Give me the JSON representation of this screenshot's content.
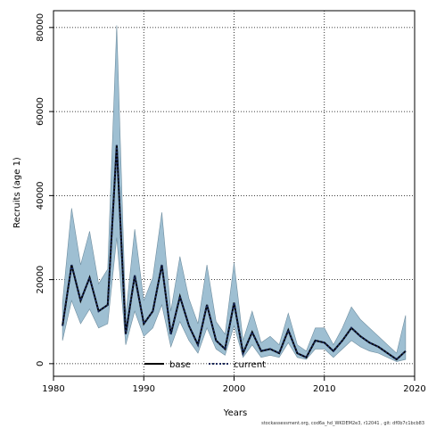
{
  "chart_data": {
    "type": "area",
    "title": "",
    "xlabel": "Years",
    "ylabel": "Recruits (age 1)",
    "xlim": [
      1980,
      2020
    ],
    "ylim": [
      -3000,
      84000
    ],
    "xticks": [
      1980,
      1990,
      2000,
      2010,
      2020
    ],
    "yticks": [
      0,
      20000,
      40000,
      60000,
      80000
    ],
    "x_tick_labels": [
      "1980",
      "1990",
      "2000",
      "2010",
      "2020"
    ],
    "y_tick_labels": [
      "0",
      "20000",
      "40000",
      "60000",
      "80000"
    ],
    "grid": true,
    "legend_position": "bottom-center",
    "x": [
      1981,
      1982,
      1983,
      1984,
      1985,
      1986,
      1987,
      1988,
      1989,
      1990,
      1991,
      1992,
      1993,
      1994,
      1995,
      1996,
      1997,
      1998,
      1999,
      2000,
      2001,
      2002,
      2003,
      2004,
      2005,
      2006,
      2007,
      2008,
      2009,
      2010,
      2011,
      2012,
      2013,
      2014,
      2015,
      2016,
      2017,
      2018,
      2019
    ],
    "series": [
      {
        "name": "base",
        "values": [
          9000,
          23500,
          15000,
          20500,
          12500,
          14000,
          52000,
          7000,
          21000,
          9500,
          12500,
          23500,
          7000,
          16000,
          9000,
          4500,
          14000,
          5500,
          3500,
          14500,
          2500,
          7500,
          3000,
          3500,
          2500,
          8000,
          2500,
          1500,
          5500,
          5000,
          3000,
          5500,
          8500,
          6500,
          5000,
          4000,
          2500,
          1000,
          3000
        ],
        "lower": [
          5500,
          15000,
          9500,
          13000,
          8500,
          9500,
          30000,
          4500,
          12500,
          6500,
          8500,
          14000,
          4000,
          10000,
          5500,
          2500,
          8500,
          3500,
          2000,
          9000,
          1500,
          4500,
          1500,
          2000,
          1500,
          5000,
          1500,
          1000,
          3500,
          3500,
          1500,
          3500,
          5500,
          4000,
          3000,
          2500,
          1500,
          500,
          1000
        ],
        "upper": [
          14500,
          37000,
          23500,
          31500,
          19000,
          22500,
          80500,
          11500,
          32000,
          15000,
          20500,
          36000,
          12500,
          25500,
          15500,
          9500,
          23500,
          10000,
          7000,
          24000,
          5500,
          12500,
          5000,
          6500,
          4500,
          12000,
          4500,
          3000,
          8500,
          8500,
          4500,
          8500,
          13500,
          10500,
          8500,
          6500,
          4500,
          2500,
          11500
        ]
      },
      {
        "name": "current",
        "values": [
          9000,
          23500,
          15000,
          20500,
          12500,
          14000,
          52000,
          7000,
          21000,
          9500,
          12500,
          23500,
          7000,
          16000,
          9000,
          4500,
          14000,
          5500,
          3500,
          14500,
          2500,
          7500,
          3000,
          3500,
          2500,
          8000,
          2500,
          1500,
          5500,
          5000,
          3000,
          5500,
          8500,
          6500,
          5000,
          4000,
          2500,
          1000,
          3000
        ]
      }
    ],
    "colors": {
      "band_fill": "#9ebfd2",
      "band_edge": "#6f8ea0",
      "base": "#000000",
      "current": "#1a2a5c",
      "grid": "#000000"
    }
  },
  "footer": "stockassessment.org, cod6a_hd_WKDEM2e3, r12041 , git: df0b7c1bcb83"
}
